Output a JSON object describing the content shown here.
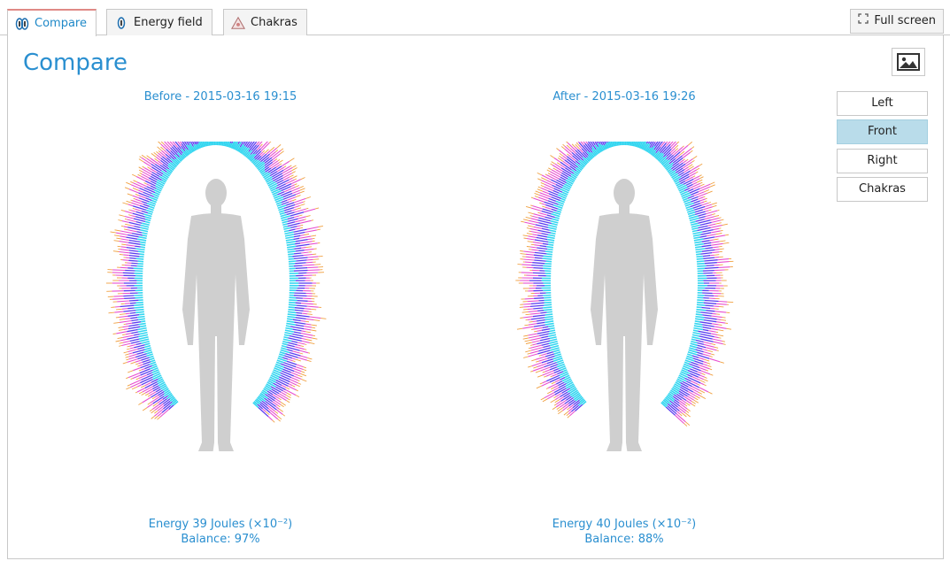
{
  "tabs": [
    {
      "label": "Compare",
      "icon": "aura-pair-icon",
      "active": true
    },
    {
      "label": "Energy field",
      "icon": "aura-single-icon",
      "active": false
    },
    {
      "label": "Chakras",
      "icon": "chakra-triangle-icon",
      "active": false
    }
  ],
  "fullscreen_label": "Full screen",
  "page_title": "Compare",
  "views": [
    "Left",
    "Front",
    "Right",
    "Chakras"
  ],
  "selected_view": "Front",
  "before": {
    "heading": "Before - 2015-03-16 19:15",
    "energy": "Energy 39 Joules (×10⁻²)",
    "balance": "Balance: 97%"
  },
  "after": {
    "heading": "After - 2015-03-16 19:26",
    "energy": "Energy 40 Joules (×10⁻²)",
    "balance": "Balance: 88%"
  },
  "colors": {
    "accent": "#2a8fd0",
    "aura_inner": "#33d6f0",
    "aura_mid": "#5a3cf0",
    "aura_outer": "#e84fd0",
    "aura_edge": "#f0a040",
    "silhouette": "#cfcfcf"
  }
}
